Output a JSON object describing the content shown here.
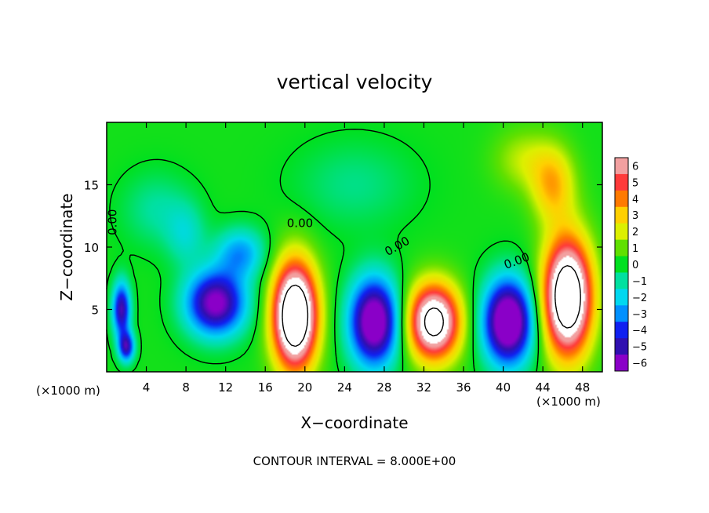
{
  "chart_data": {
    "type": "heatmap",
    "title": "vertical velocity",
    "xlabel": "X−coordinate",
    "ylabel": "Z−coordinate",
    "x_unit_left": "(×1000 m)",
    "x_unit_right": "(×1000 m)",
    "xlim": [
      0,
      50
    ],
    "ylim": [
      0,
      20
    ],
    "x_ticks": [
      4,
      8,
      12,
      16,
      20,
      24,
      28,
      32,
      36,
      40,
      44,
      48
    ],
    "y_ticks": [
      5,
      10,
      15
    ],
    "contour_interval_text": "CONTOUR INTERVAL = 8.000E+00",
    "contour_labels": [
      "0.00",
      "0.00",
      "0.00",
      "0.00"
    ],
    "colorbar": {
      "range": [
        -6,
        6
      ],
      "ticks": [
        "6",
        "5",
        "4",
        "3",
        "2",
        "1",
        "0",
        "−1",
        "−2",
        "−3",
        "−4",
        "−5",
        "−6"
      ],
      "colors": [
        "#f2a0a0",
        "#ff3a3a",
        "#ff7a00",
        "#ffd000",
        "#dcf000",
        "#60e000",
        "#00e020",
        "#00e0a0",
        "#00d8f0",
        "#0090ff",
        "#1020f0",
        "#3010b0",
        "#8a00c8"
      ]
    },
    "background_level": 0.2,
    "cells": [
      {
        "x": 1.5,
        "z": 5.0,
        "w": -5.5,
        "sx": 0.9,
        "sz": 2.2
      },
      {
        "x": 2.0,
        "z": 2.0,
        "w": -5.0,
        "sx": 0.8,
        "sz": 1.2
      },
      {
        "x": 11.0,
        "z": 5.5,
        "w": -6.5,
        "sx": 3.0,
        "sz": 2.6
      },
      {
        "x": 13.5,
        "z": 9.5,
        "w": -3.0,
        "sx": 2.5,
        "sz": 2.0
      },
      {
        "x": 8.0,
        "z": 11.0,
        "w": -1.5,
        "sx": 2.0,
        "sz": 2.5
      },
      {
        "x": 19.0,
        "z": 4.5,
        "w": 11.0,
        "sx": 2.2,
        "sz": 4.2
      },
      {
        "x": 27.0,
        "z": 4.0,
        "w": -7.5,
        "sx": 2.5,
        "sz": 3.5
      },
      {
        "x": 33.0,
        "z": 4.0,
        "w": 9.0,
        "sx": 2.6,
        "sz": 3.0
      },
      {
        "x": 40.5,
        "z": 4.0,
        "w": -8.0,
        "sx": 2.5,
        "sz": 3.4
      },
      {
        "x": 46.5,
        "z": 6.0,
        "w": 10.5,
        "sx": 2.4,
        "sz": 4.6
      },
      {
        "x": 45.0,
        "z": 15.0,
        "w": 3.0,
        "sx": 2.2,
        "sz": 3.0
      },
      {
        "x": 42.0,
        "z": 17.0,
        "w": 1.5,
        "sx": 3.0,
        "sz": 2.5
      },
      {
        "x": 25.0,
        "z": 15.0,
        "w": -1.0,
        "sx": 6.0,
        "sz": 3.5
      },
      {
        "x": 5.0,
        "z": 13.0,
        "w": -1.2,
        "sx": 3.5,
        "sz": 3.0
      }
    ]
  }
}
